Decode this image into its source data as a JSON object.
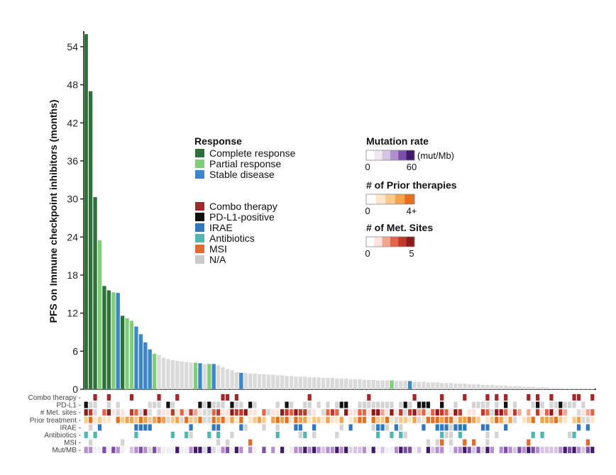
{
  "chart_data": {
    "type": "bar",
    "ylabel": "PFS on Immune checkpoint inhibitors (months)",
    "yticks": [
      0,
      6,
      12,
      18,
      24,
      30,
      36,
      42,
      48,
      54
    ],
    "ylim": [
      0,
      56
    ],
    "response_colors": {
      "CR": "#2f6f3a",
      "PR": "#7fce7a",
      "SD": "#3b87c9",
      "NA": "#dadada"
    },
    "bars": [
      {
        "v": 56.0,
        "r": "CR"
      },
      {
        "v": 47.0,
        "r": "CR"
      },
      {
        "v": 30.3,
        "r": "CR"
      },
      {
        "v": 23.5,
        "r": "PR"
      },
      {
        "v": 16.3,
        "r": "CR"
      },
      {
        "v": 15.6,
        "r": "CR"
      },
      {
        "v": 15.3,
        "r": "PR"
      },
      {
        "v": 15.2,
        "r": "SD"
      },
      {
        "v": 11.6,
        "r": "CR"
      },
      {
        "v": 11.2,
        "r": "PR"
      },
      {
        "v": 10.8,
        "r": "PR"
      },
      {
        "v": 9.9,
        "r": "SD"
      },
      {
        "v": 8.7,
        "r": "SD"
      },
      {
        "v": 7.4,
        "r": "SD"
      },
      {
        "v": 6.3,
        "r": "SD"
      },
      {
        "v": 5.6,
        "r": "PR"
      },
      {
        "v": 5.4,
        "r": "NA"
      },
      {
        "v": 5.0,
        "r": "NA"
      },
      {
        "v": 4.8,
        "r": "NA"
      },
      {
        "v": 4.6,
        "r": "NA"
      },
      {
        "v": 4.5,
        "r": "NA"
      },
      {
        "v": 4.4,
        "r": "NA"
      },
      {
        "v": 4.3,
        "r": "NA"
      },
      {
        "v": 4.2,
        "r": "NA"
      },
      {
        "v": 4.2,
        "r": "PR"
      },
      {
        "v": 4.1,
        "r": "SD"
      },
      {
        "v": 4.0,
        "r": "NA"
      },
      {
        "v": 4.0,
        "r": "PR"
      },
      {
        "v": 4.0,
        "r": "SD"
      },
      {
        "v": 3.8,
        "r": "NA"
      },
      {
        "v": 3.5,
        "r": "NA"
      },
      {
        "v": 3.2,
        "r": "NA"
      },
      {
        "v": 3.0,
        "r": "NA"
      },
      {
        "v": 2.7,
        "r": "NA"
      },
      {
        "v": 2.6,
        "r": "SD"
      },
      {
        "v": 2.6,
        "r": "NA"
      },
      {
        "v": 2.5,
        "r": "NA"
      },
      {
        "v": 2.5,
        "r": "NA"
      },
      {
        "v": 2.4,
        "r": "NA"
      },
      {
        "v": 2.4,
        "r": "NA"
      },
      {
        "v": 2.3,
        "r": "NA"
      },
      {
        "v": 2.3,
        "r": "NA"
      },
      {
        "v": 2.2,
        "r": "NA"
      },
      {
        "v": 2.2,
        "r": "NA"
      },
      {
        "v": 2.1,
        "r": "NA"
      },
      {
        "v": 2.1,
        "r": "NA"
      },
      {
        "v": 2.0,
        "r": "NA"
      },
      {
        "v": 2.0,
        "r": "NA"
      },
      {
        "v": 2.0,
        "r": "NA"
      },
      {
        "v": 1.9,
        "r": "NA"
      },
      {
        "v": 1.9,
        "r": "NA"
      },
      {
        "v": 1.9,
        "r": "NA"
      },
      {
        "v": 1.8,
        "r": "NA"
      },
      {
        "v": 1.8,
        "r": "NA"
      },
      {
        "v": 1.8,
        "r": "NA"
      },
      {
        "v": 1.7,
        "r": "NA"
      },
      {
        "v": 1.7,
        "r": "NA"
      },
      {
        "v": 1.7,
        "r": "NA"
      },
      {
        "v": 1.6,
        "r": "NA"
      },
      {
        "v": 1.6,
        "r": "NA"
      },
      {
        "v": 1.6,
        "r": "NA"
      },
      {
        "v": 1.5,
        "r": "NA"
      },
      {
        "v": 1.5,
        "r": "NA"
      },
      {
        "v": 1.5,
        "r": "NA"
      },
      {
        "v": 1.4,
        "r": "NA"
      },
      {
        "v": 1.4,
        "r": "NA"
      },
      {
        "v": 1.4,
        "r": "NA"
      },
      {
        "v": 1.4,
        "r": "PR"
      },
      {
        "v": 1.3,
        "r": "NA"
      },
      {
        "v": 1.3,
        "r": "NA"
      },
      {
        "v": 1.3,
        "r": "NA"
      },
      {
        "v": 1.3,
        "r": "SD"
      },
      {
        "v": 1.2,
        "r": "NA"
      },
      {
        "v": 1.2,
        "r": "NA"
      },
      {
        "v": 1.2,
        "r": "NA"
      },
      {
        "v": 1.1,
        "r": "NA"
      },
      {
        "v": 1.1,
        "r": "NA"
      },
      {
        "v": 1.1,
        "r": "NA"
      },
      {
        "v": 1.0,
        "r": "NA"
      },
      {
        "v": 1.0,
        "r": "NA"
      },
      {
        "v": 1.0,
        "r": "NA"
      },
      {
        "v": 0.9,
        "r": "NA"
      },
      {
        "v": 0.9,
        "r": "NA"
      },
      {
        "v": 0.9,
        "r": "NA"
      },
      {
        "v": 0.8,
        "r": "NA"
      },
      {
        "v": 0.8,
        "r": "NA"
      },
      {
        "v": 0.8,
        "r": "NA"
      },
      {
        "v": 0.7,
        "r": "NA"
      },
      {
        "v": 0.7,
        "r": "NA"
      },
      {
        "v": 0.7,
        "r": "NA"
      },
      {
        "v": 0.6,
        "r": "NA"
      },
      {
        "v": 0.6,
        "r": "NA"
      },
      {
        "v": 0.6,
        "r": "NA"
      },
      {
        "v": 0.5,
        "r": "NA"
      },
      {
        "v": 0.5,
        "r": "NA"
      },
      {
        "v": 0.5,
        "r": "NA"
      },
      {
        "v": 0.4,
        "r": "NA"
      },
      {
        "v": 0.4,
        "r": "NA"
      },
      {
        "v": 0.4,
        "r": "NA"
      },
      {
        "v": 0.3,
        "r": "NA"
      },
      {
        "v": 0.3,
        "r": "NA"
      },
      {
        "v": 0.3,
        "r": "NA"
      },
      {
        "v": 0.2,
        "r": "NA"
      },
      {
        "v": 0.2,
        "r": "NA"
      },
      {
        "v": 0.2,
        "r": "NA"
      },
      {
        "v": 0.1,
        "r": "NA"
      },
      {
        "v": 0.1,
        "r": "NA"
      },
      {
        "v": 0.1,
        "r": "NA"
      },
      {
        "v": 0.1,
        "r": "NA"
      },
      {
        "v": 0.1,
        "r": "NA"
      },
      {
        "v": 0.1,
        "r": "NA"
      },
      {
        "v": 0.1,
        "r": "NA"
      }
    ],
    "tracks": [
      {
        "label": "Combo therapy",
        "color": "#a3282b",
        "na": "#ffffff",
        "pattern": "combo"
      },
      {
        "label": "PD-L1",
        "color": "#111111",
        "na": "#d4d4d4",
        "pattern": "pdl1"
      },
      {
        "label": "# Met. sites",
        "scale": [
          "#fde3dc",
          "#f4a58f",
          "#e2654a",
          "#c0392b",
          "#8e1b1b"
        ],
        "pattern": "met"
      },
      {
        "label": "Prior treatment",
        "scale": [
          "#fde7c8",
          "#fbc98a",
          "#f5a04a",
          "#e56f1e"
        ],
        "pattern": "prior"
      },
      {
        "label": "IRAE",
        "color": "#2f78c0",
        "na": "#ffffff",
        "pattern": "irae"
      },
      {
        "label": "Antibiotics",
        "color": "#4fb8b0",
        "na": "#ffffff",
        "pattern": "abx"
      },
      {
        "label": "MSI",
        "color": "#e06b2d",
        "na": "#ffffff",
        "pattern": "msi"
      },
      {
        "label": "Mut/MB",
        "scale": [
          "#f1eef6",
          "#d7c3e3",
          "#b58ed0",
          "#7b4fa6",
          "#3f1a6b"
        ],
        "pattern": "mut"
      }
    ],
    "legend": {
      "response_title": "Response",
      "response_items": [
        {
          "label": "Complete response",
          "color": "#2f6f3a"
        },
        {
          "label": "Partial response",
          "color": "#7fce7a"
        },
        {
          "label": "Stable disease",
          "color": "#3b87c9"
        }
      ],
      "feature_items": [
        {
          "label": "Combo therapy",
          "color": "#a3282b"
        },
        {
          "label": "PD-L1-positive",
          "color": "#111111"
        },
        {
          "label": "IRAE",
          "color": "#2f78c0"
        },
        {
          "label": "Antibiotics",
          "color": "#4fb8b0"
        },
        {
          "label": "MSI",
          "color": "#e06b2d"
        },
        {
          "label": "N/A",
          "color": "#c9c9c9"
        }
      ],
      "scales": [
        {
          "title": "Mutation rate",
          "unit": "(mut/Mb)",
          "min": "0",
          "max": "60",
          "colors": [
            "#ffffff",
            "#efe7f3",
            "#d5c4e2",
            "#b08fce",
            "#7b4fa6",
            "#3f1a6b"
          ]
        },
        {
          "title": "# of Prior therapies",
          "unit": "",
          "min": "0",
          "max": "4+",
          "colors": [
            "#ffffff",
            "#fde7c8",
            "#fbc98a",
            "#f5a04a",
            "#e56f1e"
          ]
        },
        {
          "title": "# of Met. Sites",
          "unit": "",
          "min": "0",
          "max": "5",
          "colors": [
            "#ffffff",
            "#fde3dc",
            "#f4a58f",
            "#e2654a",
            "#c0392b",
            "#8e1b1b"
          ]
        }
      ]
    }
  }
}
